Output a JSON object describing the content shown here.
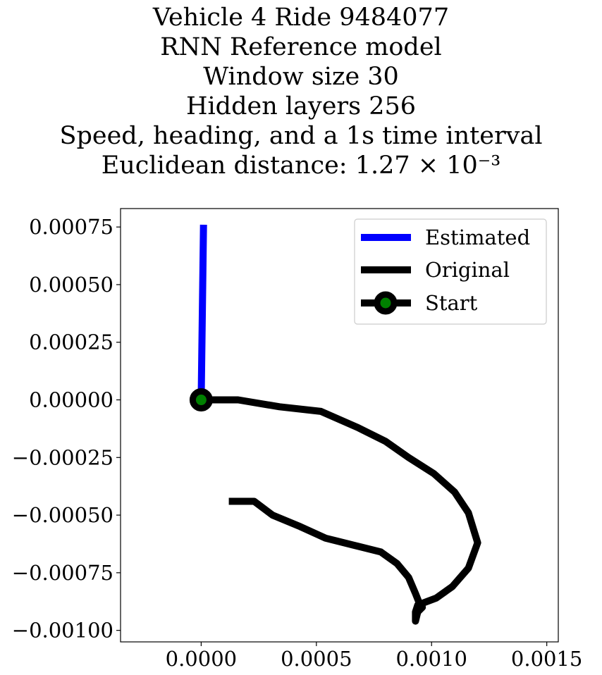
{
  "title_lines": [
    "Vehicle 4 Ride 9484077",
    "RNN Reference model",
    "Window size 30",
    "Hidden layers 256",
    "Speed, heading, and a 1s time interval",
    "Euclidean distance: 1.27 × 10⁻³"
  ],
  "chart_data": {
    "type": "line",
    "title": "Vehicle 4 Ride 9484077 / RNN Reference model / Window size 30 / Hidden layers 256 / Speed, heading, and a 1s time interval / Euclidean distance: 1.27 × 10⁻³",
    "xlabel": "",
    "ylabel": "",
    "xlim": [
      -0.00035,
      0.00155
    ],
    "ylim": [
      -0.00105,
      0.00083
    ],
    "x_ticks": [
      0.0,
      0.0005,
      0.001,
      0.0015
    ],
    "x_tick_labels": [
      "0.0000",
      "0.0005",
      "0.0010",
      "0.0015"
    ],
    "y_ticks": [
      0.00075,
      0.0005,
      0.00025,
      0.0,
      -0.00025,
      -0.0005,
      -0.00075,
      -0.001
    ],
    "y_tick_labels": [
      "0.00075",
      "0.00050",
      "0.00025",
      "0.00000",
      "−0.00025",
      "−0.00050",
      "−0.00075",
      "−0.00100"
    ],
    "grid": false,
    "legend_position": "top-right",
    "series": [
      {
        "name": "Estimated",
        "color": "#0000ff",
        "x": [
          0.0,
          1e-05
        ],
        "y": [
          0.0,
          0.00076
        ]
      },
      {
        "name": "Original",
        "color": "#000000",
        "x": [
          0.0,
          0.00016,
          0.00034,
          0.00052,
          0.00068,
          0.0008,
          0.0009,
          0.00101,
          0.0011,
          0.00116,
          0.0012,
          0.00116,
          0.00109,
          0.00102,
          0.00094,
          0.00093,
          0.00093,
          0.00094,
          0.00096,
          0.00095,
          0.00093,
          0.0009,
          0.00085,
          0.00078,
          0.00066,
          0.00054,
          0.00043,
          0.00031,
          0.00023,
          0.00012
        ],
        "y": [
          0.0,
          0.0,
          -3e-05,
          -5e-05,
          -0.00012,
          -0.00018,
          -0.00025,
          -0.00032,
          -0.0004,
          -0.00049,
          -0.00062,
          -0.00073,
          -0.00081,
          -0.00086,
          -0.00089,
          -0.00092,
          -0.00096,
          -0.00092,
          -0.0009,
          -0.00089,
          -0.00084,
          -0.00077,
          -0.00071,
          -0.00066,
          -0.00063,
          -0.0006,
          -0.00055,
          -0.0005,
          -0.00044,
          -0.00044
        ]
      }
    ],
    "start": {
      "name": "Start",
      "x": 0.0,
      "y": 0.0,
      "marker_fill": "#008000",
      "marker_edge": "#000000"
    }
  }
}
